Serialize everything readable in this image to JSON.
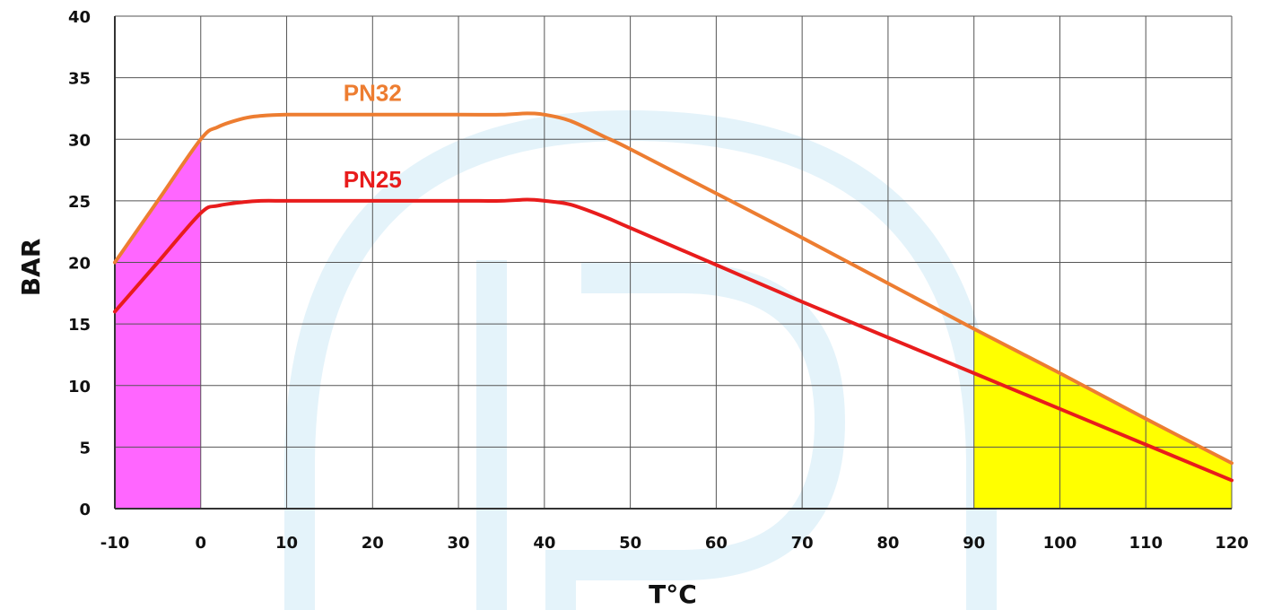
{
  "chart_data": {
    "type": "line",
    "xlabel": "T°C",
    "ylabel": "BAR",
    "xlim": [
      -10,
      120
    ],
    "ylim": [
      0,
      40
    ],
    "x_ticks": [
      -10,
      0,
      10,
      20,
      30,
      40,
      50,
      60,
      70,
      80,
      90,
      100,
      110,
      120
    ],
    "y_ticks": [
      0,
      5,
      10,
      15,
      20,
      25,
      30,
      35,
      40
    ],
    "grid": true,
    "legend": "none",
    "series": [
      {
        "name": "PN32",
        "color": "#ED7D31",
        "x": [
          -10,
          -5,
          0,
          2,
          5,
          7,
          10,
          15,
          20,
          30,
          35,
          38,
          40,
          43,
          47,
          50,
          60,
          70,
          80,
          90,
          100,
          110,
          120
        ],
        "y": [
          20,
          25,
          30,
          31,
          31.7,
          31.9,
          32,
          32,
          32,
          32,
          32,
          32.1,
          32,
          31.5,
          30.2,
          29.2,
          25.6,
          22,
          18.3,
          14.6,
          11,
          7.3,
          3.7
        ]
      },
      {
        "name": "PN25",
        "color": "#E81C1C",
        "x": [
          -10,
          -5,
          0,
          2,
          5,
          7,
          10,
          15,
          20,
          30,
          35,
          38,
          40,
          43,
          47,
          50,
          60,
          70,
          80,
          90,
          100,
          110,
          120
        ],
        "y": [
          16,
          20,
          24,
          24.6,
          24.9,
          25,
          25,
          25,
          25,
          25,
          25,
          25.1,
          25,
          24.7,
          23.7,
          22.8,
          19.8,
          16.8,
          13.9,
          11,
          8.1,
          5.2,
          2.3
        ]
      }
    ],
    "shaded_regions": [
      {
        "from": -10,
        "to": 0,
        "under": "PN32",
        "color": "#FF66FF"
      },
      {
        "from": 90,
        "to": 120,
        "under": "PN32",
        "color": "#FFFF00"
      }
    ],
    "watermark_color": "#E4F3FA"
  }
}
